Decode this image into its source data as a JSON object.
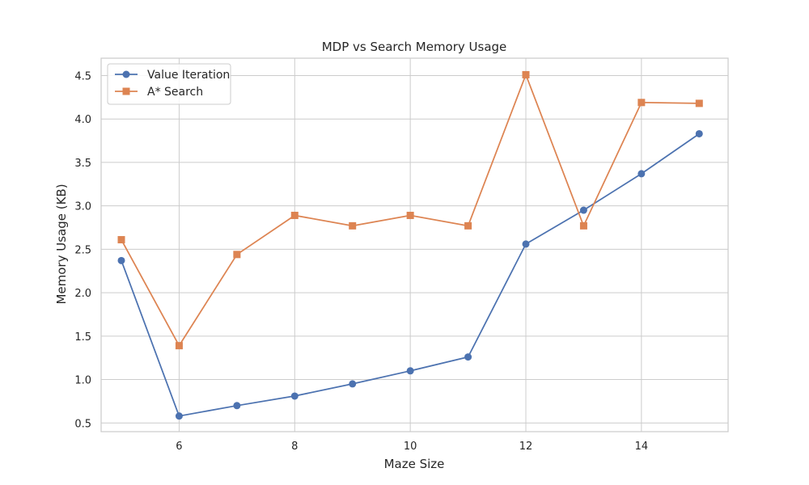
{
  "chart_data": {
    "type": "line",
    "title": "MDP vs Search Memory Usage",
    "xlabel": "Maze Size",
    "ylabel": "Memory Usage (KB)",
    "x": [
      5,
      6,
      7,
      8,
      9,
      10,
      11,
      12,
      13,
      14,
      15
    ],
    "xlim": [
      4.65,
      15.5
    ],
    "ylim": [
      0.4,
      4.7
    ],
    "xticks": [
      6,
      8,
      10,
      12,
      14
    ],
    "yticks": [
      0.5,
      1.0,
      1.5,
      2.0,
      2.5,
      3.0,
      3.5,
      4.0,
      4.5
    ],
    "yticklabels": [
      "0.5",
      "1.0",
      "1.5",
      "2.0",
      "2.5",
      "3.0",
      "3.5",
      "4.0",
      "4.5"
    ],
    "grid": true,
    "legend_position": "top-left",
    "series": [
      {
        "name": "Value Iteration",
        "marker": "circle",
        "color": "#4c72b0",
        "values": [
          2.37,
          0.58,
          0.7,
          0.81,
          0.95,
          1.1,
          1.26,
          2.56,
          2.95,
          3.37,
          3.83
        ]
      },
      {
        "name": "A* Search",
        "marker": "square",
        "color": "#dd8452",
        "values": [
          2.61,
          1.39,
          2.44,
          2.89,
          2.77,
          2.89,
          2.77,
          4.51,
          2.77,
          4.19,
          4.18
        ]
      }
    ]
  }
}
